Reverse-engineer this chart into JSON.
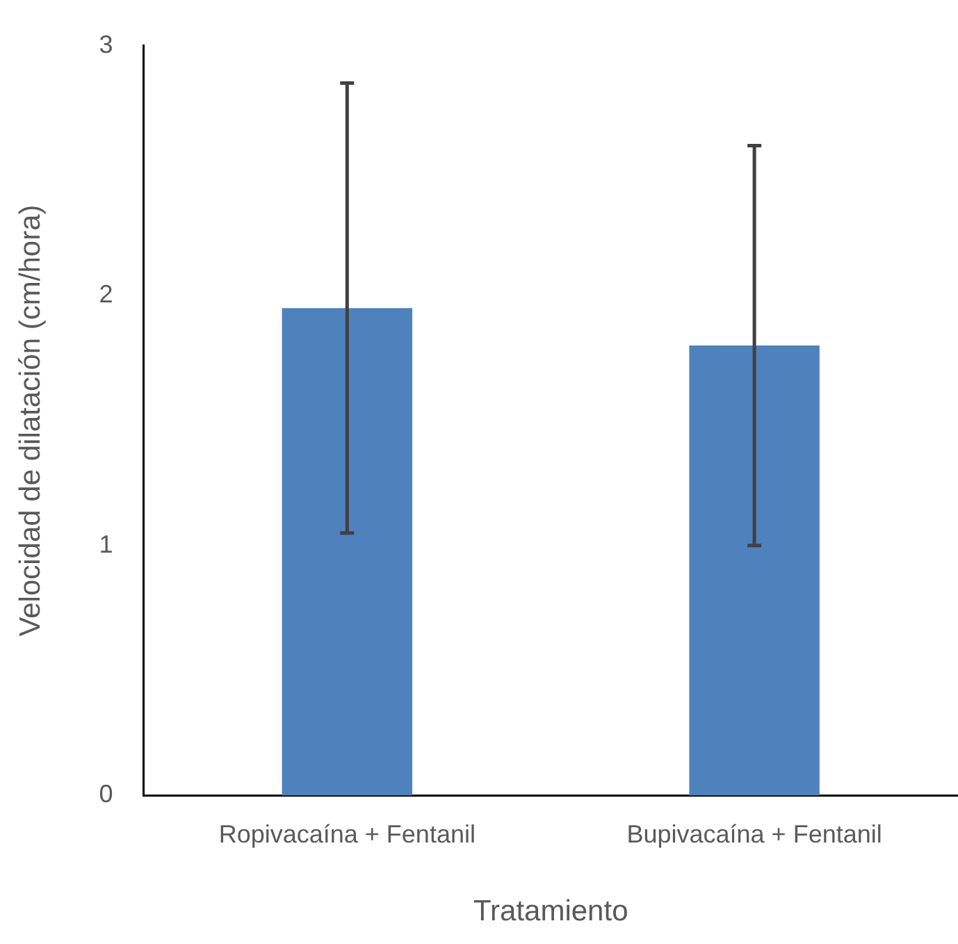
{
  "chart_data": {
    "type": "bar",
    "xlabel": "Tratamiento",
    "ylabel": "Velocidad de dilatación (cm/hora)",
    "categories": [
      "Ropivacaína + Fentanil",
      "Bupivacaína + Fentanil"
    ],
    "values": [
      1.95,
      1.8
    ],
    "errors": [
      0.9,
      0.8
    ],
    "color": "#4f81bd",
    "ylim": [
      0,
      3
    ],
    "yticks": [
      0,
      1,
      2,
      3
    ],
    "grid": false,
    "legend": false
  }
}
